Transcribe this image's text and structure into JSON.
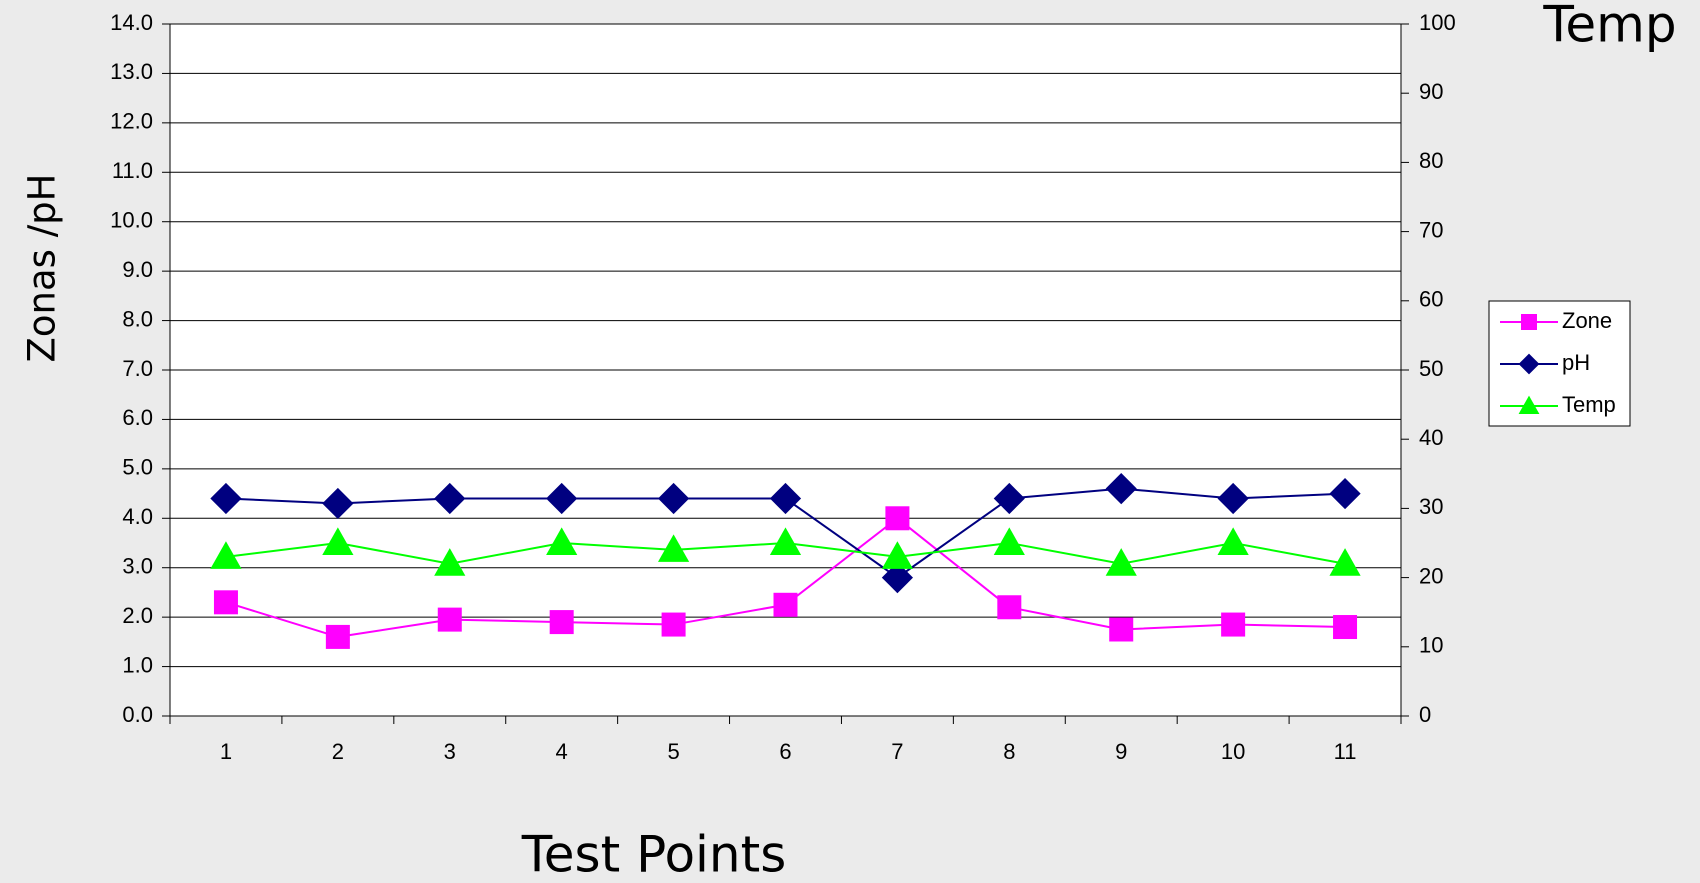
{
  "chart_data": {
    "type": "line",
    "ylabel": "Zonas /pH",
    "y2label": "Temp",
    "xlabel": "Test Points",
    "categories": [
      "1",
      "2",
      "3",
      "4",
      "5",
      "6",
      "7",
      "8",
      "9",
      "10",
      "11"
    ],
    "series": [
      {
        "name": "Zone",
        "color": "#ff00ff",
        "marker": "square",
        "values": [
          2.3,
          1.6,
          1.95,
          1.9,
          1.85,
          2.25,
          4.0,
          2.2,
          1.75,
          1.85,
          1.8
        ]
      },
      {
        "name": "pH",
        "color": "#000080",
        "marker": "diamond",
        "values": [
          4.4,
          4.3,
          4.4,
          4.4,
          4.4,
          4.4,
          2.8,
          4.4,
          4.6,
          4.4,
          4.5
        ]
      },
      {
        "name": "Temp",
        "color": "#00ff00",
        "marker": "triangle",
        "axis": "y2",
        "values": [
          23,
          25,
          22,
          25,
          24,
          25,
          23,
          25,
          22,
          25,
          22
        ]
      }
    ],
    "ylim": [
      0,
      14
    ],
    "yticks": [
      {
        "value": 0,
        "label": "0.0"
      },
      {
        "value": 1,
        "label": "1.0"
      },
      {
        "value": 2,
        "label": "2.0"
      },
      {
        "value": 3,
        "label": "3.0"
      },
      {
        "value": 4,
        "label": "4.0"
      },
      {
        "value": 5,
        "label": "5.0"
      },
      {
        "value": 6,
        "label": "6.0"
      },
      {
        "value": 7,
        "label": "7.0"
      },
      {
        "value": 8,
        "label": "8.0"
      },
      {
        "value": 9,
        "label": "9.0"
      },
      {
        "value": 10,
        "label": "10.0"
      },
      {
        "value": 11,
        "label": "11.0"
      },
      {
        "value": 12,
        "label": "12.0"
      },
      {
        "value": 13,
        "label": "13.0"
      },
      {
        "value": 14,
        "label": "14.0"
      }
    ],
    "y2lim": [
      0,
      100
    ],
    "y2ticks": [
      0,
      10,
      20,
      30,
      40,
      50,
      60,
      70,
      80,
      90,
      100
    ],
    "grid": true,
    "legend": "right"
  }
}
